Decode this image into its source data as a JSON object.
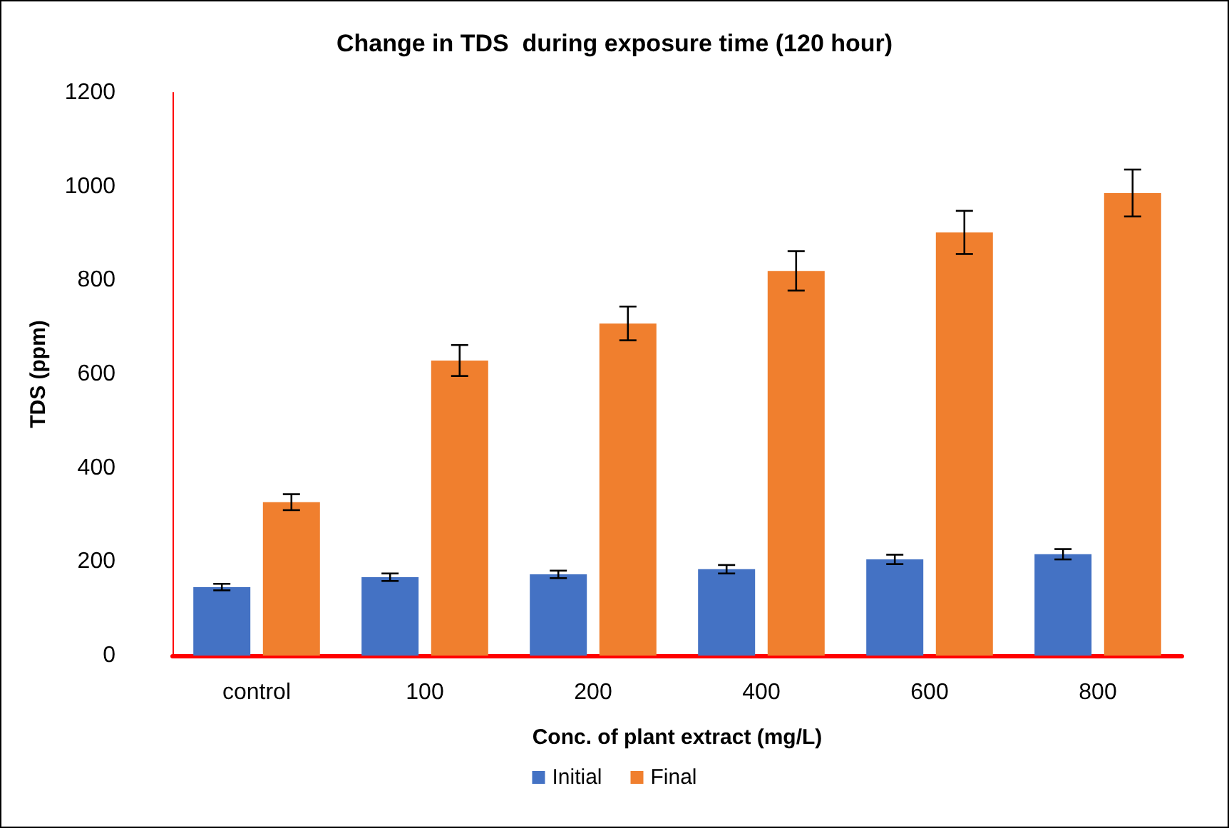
{
  "chart_data": {
    "type": "bar",
    "title": "Change in TDS  during exposure time (120 hour)",
    "xlabel": "Conc. of plant extract (mg/L)",
    "ylabel": "TDS (ppm)",
    "categories": [
      "control",
      "100",
      "200",
      "400",
      "600",
      "800"
    ],
    "series": [
      {
        "name": "Initial",
        "color": "#4472c4",
        "values": [
          146,
          167,
          173,
          184,
          205,
          216
        ],
        "errors": [
          7,
          8,
          8,
          9,
          10,
          11
        ]
      },
      {
        "name": "Final",
        "color": "#f07f2e",
        "values": [
          327,
          629,
          708,
          820,
          902,
          986
        ],
        "errors": [
          17,
          33,
          36,
          42,
          46,
          50
        ]
      }
    ],
    "ylim": [
      0,
      1200
    ],
    "yticks": [
      0,
      200,
      400,
      600,
      800,
      1000,
      1200
    ],
    "grid": false,
    "legend": "bottom"
  }
}
